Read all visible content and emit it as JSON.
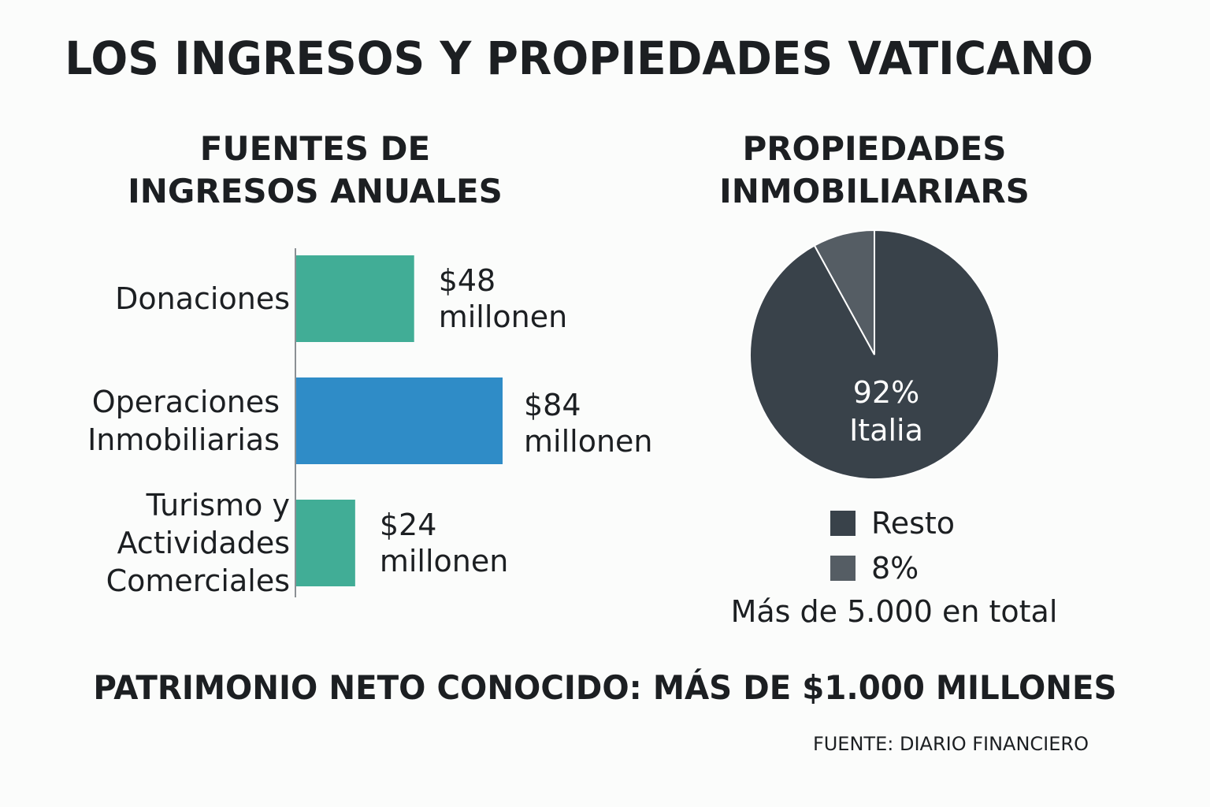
{
  "title": "LOS INGRESOS Y PROPIEDADES VATICANO",
  "colors": {
    "teal": "#41ad96",
    "blue": "#2f8cc7",
    "dark_slice": "#39424a",
    "light_slice": "#555d64",
    "axis": "#8b9094"
  },
  "chart_data": [
    {
      "type": "bar",
      "orientation": "horizontal",
      "title": [
        "FUENTES DE",
        "INGRESOS ANUALES"
      ],
      "categories": [
        [
          "Donaciones"
        ],
        [
          "Operaciones",
          "Inmobiliarias"
        ],
        [
          "Turismo y",
          "Actividades",
          "Comerciales"
        ]
      ],
      "values": [
        48,
        84,
        24
      ],
      "unit": "millonen",
      "value_labels": [
        [
          "$48",
          "millonen"
        ],
        [
          "$84",
          "millonen"
        ],
        [
          "$24",
          "millonen"
        ]
      ],
      "colors": [
        "#41ad96",
        "#2f8cc7",
        "#41ad96"
      ],
      "xlim": [
        0,
        84
      ],
      "grid": false,
      "legend": "none"
    },
    {
      "type": "pie",
      "title": [
        "PROPIEDADES",
        "INMOBILIARIARS"
      ],
      "slices": [
        {
          "label": "92% Italia",
          "value": 92,
          "color": "#39424a"
        },
        {
          "label": "8%",
          "value": 8,
          "color": "#555d64"
        }
      ],
      "slice_label": [
        "92%",
        "Italia"
      ],
      "legend_position": "bottom",
      "legend": [
        {
          "label": "Resto",
          "color": "#39424a"
        },
        {
          "label": "8%",
          "color": "#555d64"
        }
      ],
      "note": "Más de 5.000 en total"
    }
  ],
  "footer": "PATRIMONIO NETO CONOCIDO: MÁS DE $1.000 MILLONES",
  "source": "FUENTE: DIARIO FINANCIERO"
}
